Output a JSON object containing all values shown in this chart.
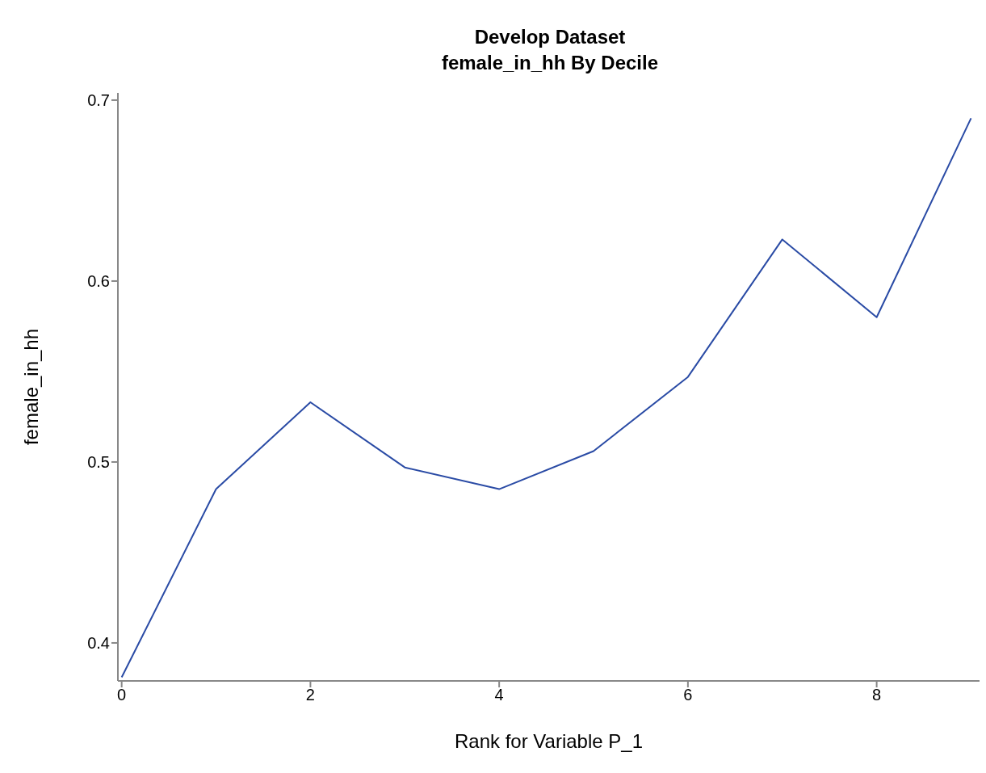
{
  "chart_data": {
    "type": "line",
    "title": "Develop Dataset",
    "subtitle": "female_in_hh By Decile",
    "xlabel": "Rank for Variable P_1",
    "ylabel": "female_in_hh",
    "x": [
      0,
      1,
      2,
      3,
      4,
      5,
      6,
      7,
      8,
      9
    ],
    "series": [
      {
        "color": "#2a4ba5",
        "values": [
          0.381,
          0.485,
          0.533,
          0.497,
          0.485,
          0.506,
          0.547,
          0.623,
          0.58,
          0.69
        ]
      }
    ],
    "xlim": [
      -0.04,
      9.09
    ],
    "xticks": [
      0,
      2,
      4,
      6,
      8
    ],
    "ylim": [
      0.379,
      0.704
    ],
    "yticks": [
      0.4,
      0.5,
      0.6,
      0.7
    ],
    "grid": false,
    "legend": false,
    "marker": "none",
    "line_style": "solid"
  }
}
